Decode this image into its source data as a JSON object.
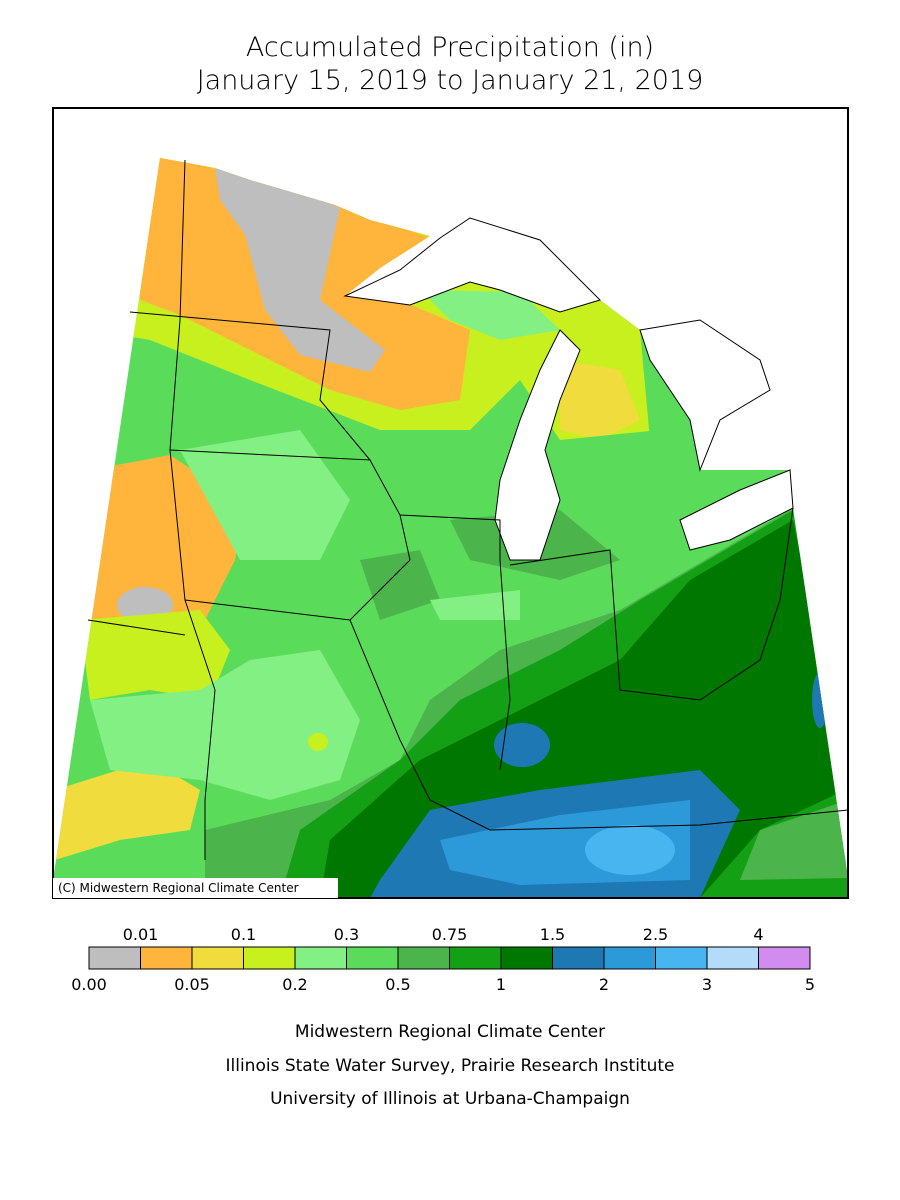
{
  "header": {
    "title": "Accumulated Precipitation (in)",
    "subtitle": "January 15, 2019 to January 21, 2019"
  },
  "map": {
    "credit": "(C) Midwestern Regional Climate Center"
  },
  "legend": {
    "colors": [
      "#bebebe",
      "#ffb43c",
      "#f0dc3c",
      "#c8f01e",
      "#82f082",
      "#5adc5a",
      "#4bb44b",
      "#14a014",
      "#007800",
      "#1e78b4",
      "#2c9ad9",
      "#48b4f0",
      "#b4dcfa",
      "#d28cf0"
    ],
    "labels": [
      "0.00",
      "0.01",
      "0.05",
      "0.1",
      "0.2",
      "0.3",
      "0.5",
      "0.75",
      "1",
      "1.5",
      "2",
      "2.5",
      "3",
      "4",
      "5"
    ]
  },
  "footer": {
    "lines": [
      "Midwestern Regional Climate Center",
      "Illinois State Water Survey, Prairie Research Institute",
      "University of Illinois at Urbana-Champaign"
    ]
  }
}
